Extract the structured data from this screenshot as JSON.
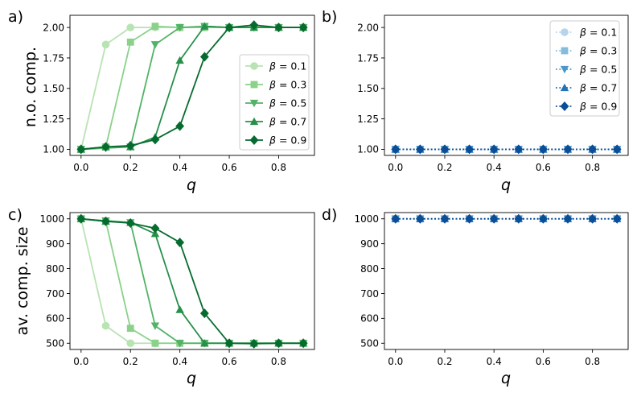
{
  "colors": {
    "greens": [
      "#b8e3b2",
      "#8ad18a",
      "#52b365",
      "#26904a",
      "#066b2e"
    ],
    "blues": [
      "#b6d4ea",
      "#85bcdc",
      "#4c97c9",
      "#2473b5",
      "#0b4d96"
    ]
  },
  "chart_data": [
    {
      "type": "line",
      "panel_label": "a)",
      "xlabel": "q",
      "ylabel": "n.o. comp.",
      "xlim": [
        -0.045,
        0.945
      ],
      "ylim": [
        0.95,
        2.1
      ],
      "x_ticks": [
        0.0,
        0.2,
        0.4,
        0.6,
        0.8
      ],
      "x_tick_labels": [
        "0.0",
        "0.2",
        "0.4",
        "0.6",
        "0.8"
      ],
      "y_ticks": [
        1.0,
        1.25,
        1.5,
        1.75,
        2.0
      ],
      "y_tick_labels": [
        "1.00",
        "1.25",
        "1.50",
        "1.75",
        "2.00"
      ],
      "x": [
        0.0,
        0.1,
        0.2,
        0.3,
        0.4,
        0.5,
        0.6,
        0.7,
        0.8,
        0.9
      ],
      "legend_position": "center-right",
      "palette": "greens",
      "line_style": "solid",
      "series": [
        {
          "name": "β = 0.1",
          "label_pre": "β",
          "label_post": " = 0.1",
          "marker": "circle",
          "values": [
            1.0,
            1.86,
            2.0,
            2.0,
            2.0,
            2.0,
            2.0,
            2.0,
            2.0,
            2.0
          ]
        },
        {
          "name": "β = 0.3",
          "label_pre": "β",
          "label_post": " = 0.3",
          "marker": "square",
          "values": [
            1.0,
            1.02,
            1.88,
            2.01,
            2.0,
            2.0,
            2.0,
            2.0,
            2.0,
            2.0
          ]
        },
        {
          "name": "β = 0.5",
          "label_pre": "β",
          "label_post": " = 0.5",
          "marker": "triangle-down",
          "values": [
            1.0,
            1.01,
            1.02,
            1.86,
            2.0,
            2.01,
            2.0,
            2.0,
            2.0,
            2.0
          ]
        },
        {
          "name": "β = 0.7",
          "label_pre": "β",
          "label_post": " = 0.7",
          "marker": "triangle-up",
          "values": [
            1.0,
            1.02,
            1.02,
            1.1,
            1.73,
            2.01,
            2.0,
            2.0,
            2.0,
            2.0
          ]
        },
        {
          "name": "β = 0.9",
          "label_pre": "β",
          "label_post": " = 0.9",
          "marker": "diamond",
          "values": [
            1.0,
            1.02,
            1.03,
            1.08,
            1.19,
            1.76,
            2.0,
            2.02,
            2.0,
            2.0
          ]
        }
      ]
    },
    {
      "type": "line",
      "panel_label": "b)",
      "xlabel": "q",
      "ylabel": "",
      "xlim": [
        -0.045,
        0.945
      ],
      "ylim": [
        0.95,
        2.1
      ],
      "x_ticks": [
        0.0,
        0.2,
        0.4,
        0.6,
        0.8
      ],
      "x_tick_labels": [
        "0.0",
        "0.2",
        "0.4",
        "0.6",
        "0.8"
      ],
      "y_ticks": [
        1.0,
        1.25,
        1.5,
        1.75,
        2.0
      ],
      "y_tick_labels": [
        "1.00",
        "1.25",
        "1.50",
        "1.75",
        "2.00"
      ],
      "x": [
        0.0,
        0.1,
        0.2,
        0.3,
        0.4,
        0.5,
        0.6,
        0.7,
        0.8,
        0.9
      ],
      "legend_position": "top-right",
      "palette": "blues",
      "line_style": "dotted",
      "series": [
        {
          "name": "β = 0.1",
          "label_pre": "β",
          "label_post": " = 0.1",
          "marker": "circle",
          "values": [
            1,
            1,
            1,
            1,
            1,
            1,
            1,
            1,
            1,
            1
          ]
        },
        {
          "name": "β = 0.3",
          "label_pre": "β",
          "label_post": " = 0.3",
          "marker": "square",
          "values": [
            1,
            1,
            1,
            1,
            1,
            1,
            1,
            1,
            1,
            1
          ]
        },
        {
          "name": "β = 0.5",
          "label_pre": "β",
          "label_post": " = 0.5",
          "marker": "triangle-down",
          "values": [
            1,
            1,
            1,
            1,
            1,
            1,
            1,
            1,
            1,
            1
          ]
        },
        {
          "name": "β = 0.7",
          "label_pre": "β",
          "label_post": " = 0.7",
          "marker": "triangle-up",
          "values": [
            1,
            1,
            1,
            1,
            1,
            1,
            1,
            1,
            1,
            1
          ]
        },
        {
          "name": "β = 0.9",
          "label_pre": "β",
          "label_post": " = 0.9",
          "marker": "diamond",
          "values": [
            1,
            1,
            1,
            1,
            1,
            1,
            1,
            1,
            1,
            1
          ]
        }
      ]
    },
    {
      "type": "line",
      "panel_label": "c)",
      "xlabel": "q",
      "ylabel": "av. comp. size",
      "xlim": [
        -0.045,
        0.945
      ],
      "ylim": [
        475,
        1025
      ],
      "x_ticks": [
        0.0,
        0.2,
        0.4,
        0.6,
        0.8
      ],
      "x_tick_labels": [
        "0.0",
        "0.2",
        "0.4",
        "0.6",
        "0.8"
      ],
      "y_ticks": [
        500,
        600,
        700,
        800,
        900,
        1000
      ],
      "y_tick_labels": [
        "500",
        "600",
        "700",
        "800",
        "900",
        "1000"
      ],
      "x": [
        0.0,
        0.1,
        0.2,
        0.3,
        0.4,
        0.5,
        0.6,
        0.7,
        0.8,
        0.9
      ],
      "legend_position": "none",
      "palette": "greens",
      "line_style": "solid",
      "series": [
        {
          "name": "β = 0.1",
          "marker": "circle",
          "values": [
            1000,
            570,
            500,
            500,
            500,
            500,
            500,
            500,
            500,
            500
          ]
        },
        {
          "name": "β = 0.3",
          "marker": "square",
          "values": [
            1000,
            990,
            560,
            500,
            500,
            500,
            500,
            500,
            500,
            500
          ]
        },
        {
          "name": "β = 0.5",
          "marker": "triangle-down",
          "values": [
            1000,
            992,
            985,
            570,
            500,
            500,
            500,
            500,
            500,
            500
          ]
        },
        {
          "name": "β = 0.7",
          "marker": "triangle-up",
          "values": [
            1000,
            990,
            985,
            940,
            635,
            500,
            500,
            500,
            500,
            500
          ]
        },
        {
          "name": "β = 0.9",
          "marker": "diamond",
          "values": [
            1000,
            990,
            983,
            962,
            905,
            620,
            500,
            498,
            500,
            500
          ]
        }
      ]
    },
    {
      "type": "line",
      "panel_label": "d)",
      "xlabel": "q",
      "ylabel": "",
      "xlim": [
        -0.045,
        0.945
      ],
      "ylim": [
        475,
        1025
      ],
      "x_ticks": [
        0.0,
        0.2,
        0.4,
        0.6,
        0.8
      ],
      "x_tick_labels": [
        "0.0",
        "0.2",
        "0.4",
        "0.6",
        "0.8"
      ],
      "y_ticks": [
        500,
        600,
        700,
        800,
        900,
        1000
      ],
      "y_tick_labels": [
        "500",
        "600",
        "700",
        "800",
        "900",
        "1000"
      ],
      "x": [
        0.0,
        0.1,
        0.2,
        0.3,
        0.4,
        0.5,
        0.6,
        0.7,
        0.8,
        0.9
      ],
      "legend_position": "none",
      "palette": "blues",
      "line_style": "dotted",
      "series": [
        {
          "name": "β = 0.1",
          "marker": "circle",
          "values": [
            1000,
            1000,
            1000,
            1000,
            1000,
            1000,
            1000,
            1000,
            1000,
            1000
          ]
        },
        {
          "name": "β = 0.3",
          "marker": "square",
          "values": [
            1000,
            1000,
            1000,
            1000,
            1000,
            1000,
            1000,
            1000,
            1000,
            1000
          ]
        },
        {
          "name": "β = 0.5",
          "marker": "triangle-down",
          "values": [
            1000,
            1000,
            1000,
            1000,
            1000,
            1000,
            1000,
            1000,
            1000,
            1000
          ]
        },
        {
          "name": "β = 0.7",
          "marker": "triangle-up",
          "values": [
            1000,
            1000,
            1000,
            1000,
            1000,
            1000,
            1000,
            1000,
            1000,
            1000
          ]
        },
        {
          "name": "β = 0.9",
          "marker": "diamond",
          "values": [
            1000,
            1000,
            1000,
            1000,
            1000,
            1000,
            1000,
            1000,
            1000,
            1000
          ]
        }
      ]
    }
  ]
}
